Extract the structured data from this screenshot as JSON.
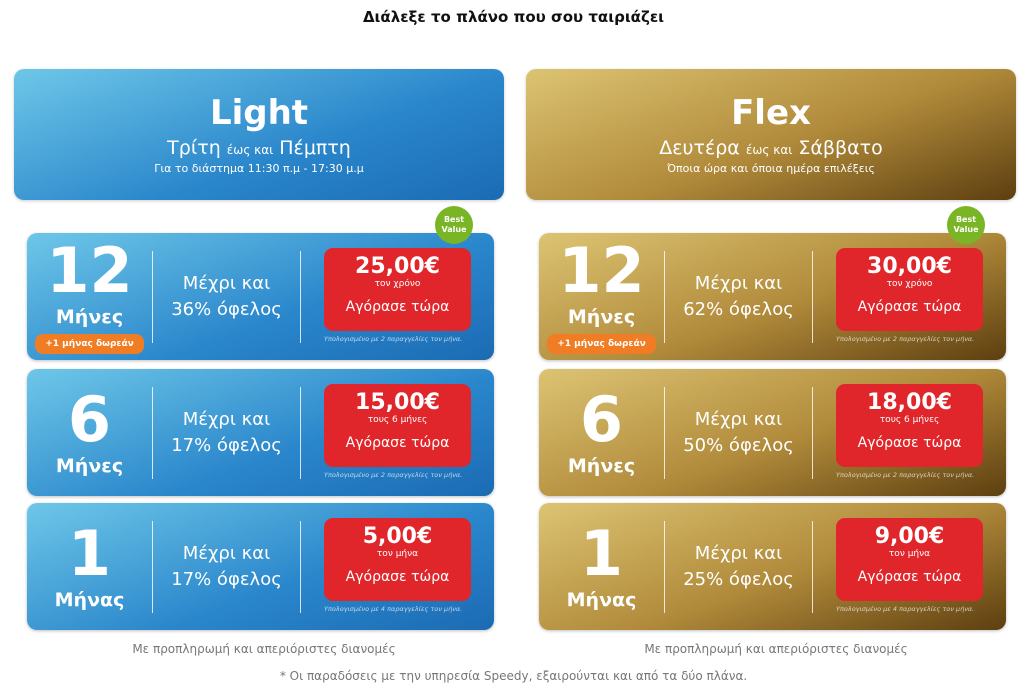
{
  "title": "Διάλεξε το πλάνο που σου ταιριάζει",
  "plans": [
    {
      "name": "Light",
      "days": [
        "Τρίτη",
        "έως και",
        "Πέμπτη"
      ],
      "hours": "Για το διάστημα 11:30 π.μ - 17:30 μ.μ",
      "options": [
        {
          "number": "12",
          "unit": "Μήνες",
          "bonus": "+1 μήνας δωρεάν",
          "badge": [
            "Best",
            "Value"
          ],
          "benefit": [
            "Μέχρι και",
            "36% όφελος"
          ],
          "price": "25,00€",
          "period": "τον χρόνο",
          "button": "Αγόρασε τώρα",
          "note": "Υπολογισμένο με 2 παραγγελίες τον μήνα."
        },
        {
          "number": "6",
          "unit": "Μήνες",
          "benefit": [
            "Μέχρι και",
            "17% όφελος"
          ],
          "price": "15,00€",
          "period": "τους 6 μήνες",
          "button": "Αγόρασε τώρα",
          "note": "Υπολογισμένο με 2 παραγγελίες τον μήνα."
        },
        {
          "number": "1",
          "unit": "Μήνας",
          "benefit": [
            "Μέχρι και",
            "17% όφελος"
          ],
          "price": "5,00€",
          "period": "τον μήνα",
          "button": "Αγόρασε τώρα",
          "note": "Υπολογισμένο με 4 παραγγελίες τον μήνα."
        }
      ],
      "footer": "Με προπληρωμή και απεριόριστες διανομές"
    },
    {
      "name": "Flex",
      "days": [
        "Δευτέρα",
        "έως και",
        "Σάββατο"
      ],
      "hours": "Όποια ώρα και όποια ημέρα επιλέξεις",
      "options": [
        {
          "number": "12",
          "unit": "Μήνες",
          "bonus": "+1 μήνας δωρεάν",
          "badge": [
            "Best",
            "Value"
          ],
          "benefit": [
            "Μέχρι και",
            "62% όφελος"
          ],
          "price": "30,00€",
          "period": "τον χρόνο",
          "button": "Αγόρασε τώρα",
          "note": "Υπολογισμένο με 2 παραγγελίες τον μήνα."
        },
        {
          "number": "6",
          "unit": "Μήνες",
          "benefit": [
            "Μέχρι και",
            "50% όφελος"
          ],
          "price": "18,00€",
          "period": "τους 6 μήνες",
          "button": "Αγόρασε τώρα",
          "note": "Υπολογισμένο με 2 παραγγελίες τον μήνα."
        },
        {
          "number": "1",
          "unit": "Μήνας",
          "benefit": [
            "Μέχρι και",
            "25% όφελος"
          ],
          "price": "9,00€",
          "period": "τον μήνα",
          "button": "Αγόρασε τώρα",
          "note": "Υπολογισμένο με 4 παραγγελίες τον μήνα."
        }
      ],
      "footer": "Με προπληρωμή και απεριόριστες διανομές"
    }
  ],
  "footnote": "* Οι παραδόσεις με την υπηρεσία Speedy, εξαιρούνται και από τα δύο πλάνα."
}
